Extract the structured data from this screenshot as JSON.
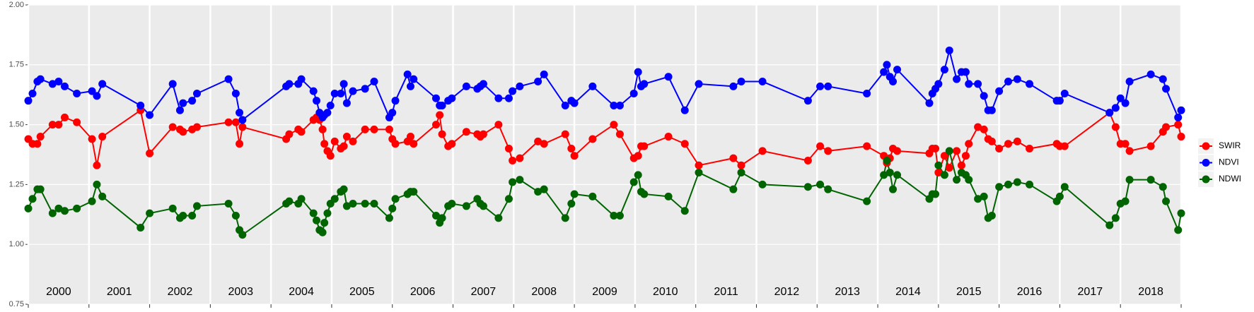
{
  "chart_data": {
    "type": "line",
    "x": [
      2000.0,
      2000.07,
      2000.15,
      2000.2,
      2000.4,
      2000.5,
      2000.6,
      2000.8,
      2001.05,
      2001.13,
      2001.22,
      2001.85,
      2002.0,
      2002.38,
      2002.5,
      2002.55,
      2002.7,
      2002.78,
      2003.3,
      2003.42,
      2003.48,
      2003.53,
      2004.25,
      2004.3,
      2004.45,
      2004.5,
      2004.7,
      2004.75,
      2004.8,
      2004.85,
      2004.88,
      2004.93,
      2004.98,
      2005.05,
      2005.15,
      2005.2,
      2005.25,
      2005.35,
      2005.55,
      2005.7,
      2005.95,
      2006.0,
      2006.05,
      2006.25,
      2006.3,
      2006.35,
      2006.72,
      2006.78,
      2006.82,
      2006.92,
      2006.98,
      2007.22,
      2007.4,
      2007.45,
      2007.5,
      2007.75,
      2007.92,
      2007.98,
      2008.1,
      2008.4,
      2008.5,
      2008.85,
      2008.95,
      2009.0,
      2009.3,
      2009.65,
      2009.75,
      2009.98,
      2010.05,
      2010.1,
      2010.15,
      2010.55,
      2010.82,
      2011.05,
      2011.62,
      2011.75,
      2012.1,
      2012.85,
      2013.05,
      2013.18,
      2013.82,
      2014.1,
      2014.15,
      2014.2,
      2014.25,
      2014.32,
      2014.85,
      2014.9,
      2014.95,
      2015.0,
      2015.1,
      2015.18,
      2015.3,
      2015.38,
      2015.45,
      2015.5,
      2015.65,
      2015.75,
      2015.82,
      2015.88,
      2016.0,
      2016.15,
      2016.3,
      2016.5,
      2016.95,
      2017.0,
      2017.08,
      2017.82,
      2017.92,
      2018.0,
      2018.08,
      2018.15,
      2018.5,
      2018.7,
      2018.75,
      2018.95,
      2019.0
    ],
    "series": [
      {
        "name": "SWIR",
        "color": "#ff0000",
        "values": [
          1.44,
          1.42,
          1.42,
          1.45,
          1.5,
          1.5,
          1.53,
          1.51,
          1.44,
          1.33,
          1.45,
          1.56,
          1.38,
          1.49,
          1.48,
          1.47,
          1.48,
          1.49,
          1.51,
          1.51,
          1.42,
          1.49,
          1.44,
          1.46,
          1.48,
          1.47,
          1.52,
          1.53,
          1.52,
          1.48,
          1.42,
          1.39,
          1.37,
          1.43,
          1.4,
          1.41,
          1.45,
          1.43,
          1.48,
          1.48,
          1.48,
          1.44,
          1.42,
          1.43,
          1.45,
          1.42,
          1.5,
          1.54,
          1.46,
          1.41,
          1.42,
          1.47,
          1.46,
          1.45,
          1.46,
          1.5,
          1.4,
          1.35,
          1.36,
          1.43,
          1.42,
          1.46,
          1.4,
          1.37,
          1.44,
          1.5,
          1.46,
          1.36,
          1.37,
          1.41,
          1.41,
          1.45,
          1.42,
          1.33,
          1.36,
          1.33,
          1.39,
          1.35,
          1.41,
          1.39,
          1.41,
          1.37,
          1.34,
          1.36,
          1.4,
          1.39,
          1.38,
          1.4,
          1.4,
          1.3,
          1.37,
          1.32,
          1.39,
          1.33,
          1.37,
          1.42,
          1.49,
          1.48,
          1.44,
          1.43,
          1.4,
          1.42,
          1.43,
          1.4,
          1.42,
          1.41,
          1.41,
          1.55,
          1.49,
          1.42,
          1.42,
          1.39,
          1.41,
          1.47,
          1.49,
          1.5,
          1.45
        ]
      },
      {
        "name": "NDVI",
        "color": "#0000ff",
        "values": [
          1.6,
          1.63,
          1.68,
          1.69,
          1.67,
          1.68,
          1.66,
          1.63,
          1.64,
          1.62,
          1.67,
          1.58,
          1.54,
          1.67,
          1.56,
          1.59,
          1.6,
          1.63,
          1.69,
          1.63,
          1.55,
          1.52,
          1.66,
          1.67,
          1.67,
          1.69,
          1.64,
          1.6,
          1.55,
          1.53,
          1.54,
          1.55,
          1.58,
          1.63,
          1.63,
          1.67,
          1.59,
          1.64,
          1.65,
          1.68,
          1.53,
          1.55,
          1.6,
          1.71,
          1.66,
          1.69,
          1.61,
          1.58,
          1.58,
          1.6,
          1.61,
          1.66,
          1.65,
          1.66,
          1.67,
          1.61,
          1.61,
          1.64,
          1.66,
          1.68,
          1.71,
          1.58,
          1.6,
          1.59,
          1.66,
          1.58,
          1.58,
          1.63,
          1.72,
          1.66,
          1.67,
          1.7,
          1.56,
          1.67,
          1.66,
          1.68,
          1.68,
          1.6,
          1.66,
          1.66,
          1.63,
          1.72,
          1.75,
          1.7,
          1.68,
          1.73,
          1.59,
          1.63,
          1.65,
          1.67,
          1.73,
          1.81,
          1.69,
          1.72,
          1.72,
          1.67,
          1.67,
          1.62,
          1.56,
          1.56,
          1.64,
          1.68,
          1.69,
          1.67,
          1.6,
          1.6,
          1.63,
          1.55,
          1.57,
          1.61,
          1.59,
          1.68,
          1.71,
          1.69,
          1.65,
          1.53,
          1.56
        ]
      },
      {
        "name": "NDWI",
        "color": "#006400",
        "values": [
          1.15,
          1.19,
          1.23,
          1.23,
          1.13,
          1.15,
          1.14,
          1.15,
          1.18,
          1.25,
          1.2,
          1.07,
          1.13,
          1.15,
          1.11,
          1.12,
          1.12,
          1.16,
          1.17,
          1.12,
          1.06,
          1.04,
          1.17,
          1.18,
          1.17,
          1.19,
          1.13,
          1.1,
          1.06,
          1.05,
          1.09,
          1.13,
          1.17,
          1.19,
          1.22,
          1.23,
          1.16,
          1.17,
          1.17,
          1.17,
          1.11,
          1.15,
          1.19,
          1.21,
          1.22,
          1.22,
          1.12,
          1.09,
          1.11,
          1.16,
          1.17,
          1.16,
          1.19,
          1.17,
          1.16,
          1.11,
          1.19,
          1.26,
          1.27,
          1.22,
          1.23,
          1.11,
          1.17,
          1.21,
          1.2,
          1.12,
          1.12,
          1.26,
          1.29,
          1.22,
          1.21,
          1.2,
          1.14,
          1.3,
          1.23,
          1.3,
          1.25,
          1.24,
          1.25,
          1.23,
          1.18,
          1.29,
          1.35,
          1.3,
          1.23,
          1.29,
          1.19,
          1.21,
          1.21,
          1.33,
          1.29,
          1.39,
          1.27,
          1.3,
          1.29,
          1.27,
          1.19,
          1.2,
          1.11,
          1.12,
          1.24,
          1.25,
          1.26,
          1.25,
          1.18,
          1.2,
          1.24,
          1.08,
          1.11,
          1.17,
          1.18,
          1.27,
          1.27,
          1.24,
          1.18,
          1.06,
          1.13
        ]
      }
    ],
    "xlim": [
      2000,
      2019
    ],
    "xticks": [
      2000,
      2001,
      2002,
      2003,
      2004,
      2005,
      2006,
      2007,
      2008,
      2009,
      2010,
      2011,
      2012,
      2013,
      2014,
      2015,
      2016,
      2017,
      2018,
      2019
    ],
    "year_labels": [
      "2000",
      "2001",
      "2002",
      "2003",
      "2004",
      "2005",
      "2006",
      "2007",
      "2008",
      "2009",
      "2010",
      "2011",
      "2012",
      "2013",
      "2014",
      "2015",
      "2016",
      "2017",
      "2018"
    ],
    "ylim": [
      0.75,
      2.0
    ],
    "yticks": [
      0.75,
      {
        "value": 1.0,
        "label": "1.00"
      },
      1.25,
      {
        "value": 1.5,
        "label": "1.50"
      },
      1.75,
      {
        "value": 2.0,
        "label": "2.00"
      }
    ],
    "grid": true,
    "legend": "right"
  }
}
